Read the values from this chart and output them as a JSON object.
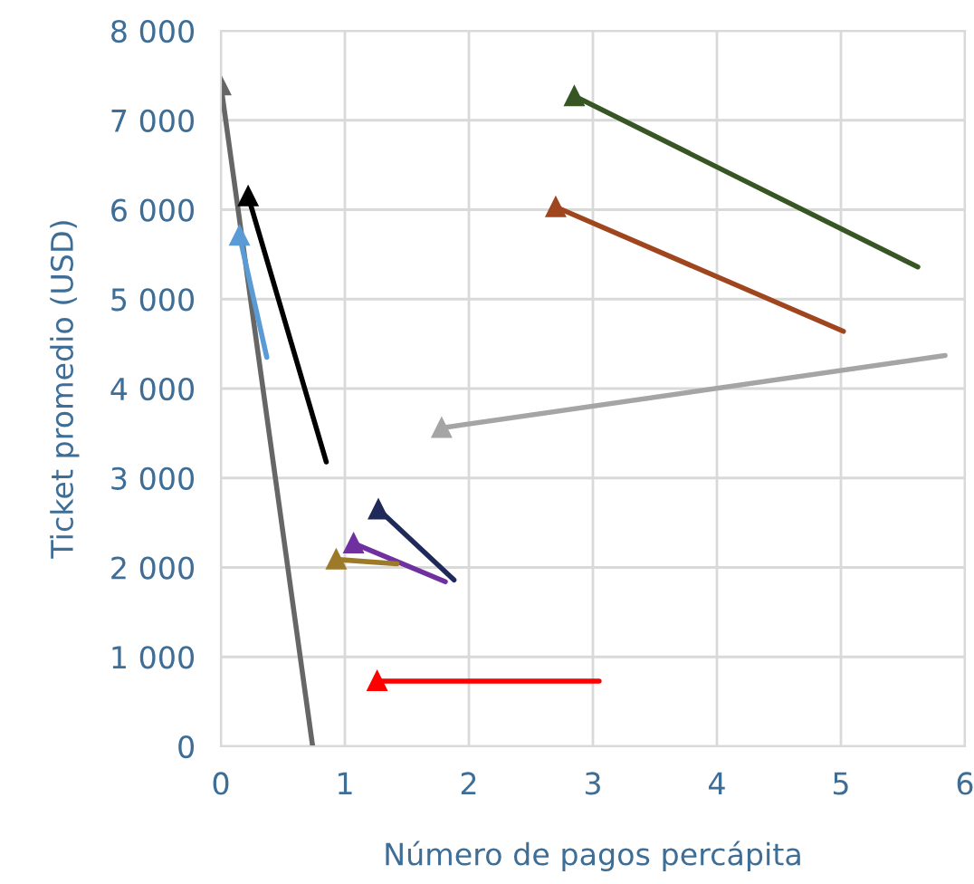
{
  "chart_data": {
    "type": "line",
    "xlabel": "Número de pagos percápita",
    "ylabel": "Ticket promedio (USD)",
    "xlim": [
      0,
      6
    ],
    "xticks": [
      0,
      1,
      2,
      3,
      4,
      5,
      6
    ],
    "ylim": [
      0,
      8000
    ],
    "yticks": [
      {
        "value": 0,
        "label": "0"
      },
      {
        "value": 1000,
        "label": "1 000"
      },
      {
        "value": 2000,
        "label": "2 000"
      },
      {
        "value": 3000,
        "label": "3 000"
      },
      {
        "value": 4000,
        "label": "4 000"
      },
      {
        "value": 5000,
        "label": "5 000"
      },
      {
        "value": 6000,
        "label": "6 000"
      },
      {
        "value": 7000,
        "label": "7 000"
      },
      {
        "value": 8000,
        "label": "8 000"
      }
    ],
    "grid": true,
    "marker": "triangle",
    "line_style": "solid",
    "series": [
      {
        "color": "#666666",
        "x": [
          0,
          0.74
        ],
        "values": [
          7390,
          0
        ]
      },
      {
        "color": "#000000",
        "x": [
          0.22,
          0.85
        ],
        "values": [
          6150,
          3180
        ]
      },
      {
        "color": "#5b9bd5",
        "x": [
          0.15,
          0.37
        ],
        "values": [
          5710,
          4350
        ]
      },
      {
        "color": "#a5a5a5",
        "x": [
          1.78,
          5.84
        ],
        "values": [
          3560,
          4370
        ]
      },
      {
        "color": "#375623",
        "x": [
          2.85,
          5.62
        ],
        "values": [
          7270,
          5360
        ]
      },
      {
        "color": "#a0461e",
        "x": [
          2.7,
          5.02
        ],
        "values": [
          6030,
          4640
        ]
      },
      {
        "color": "#1f2a5a",
        "x": [
          1.27,
          1.88
        ],
        "values": [
          2650,
          1860
        ]
      },
      {
        "color": "#7030a0",
        "x": [
          1.07,
          1.81
        ],
        "values": [
          2270,
          1840
        ]
      },
      {
        "color": "#9c7a2a",
        "x": [
          0.93,
          1.42
        ],
        "values": [
          2090,
          2040
        ]
      },
      {
        "color": "#ff0000",
        "x": [
          1.26,
          3.05
        ],
        "values": [
          730,
          730
        ]
      }
    ]
  }
}
